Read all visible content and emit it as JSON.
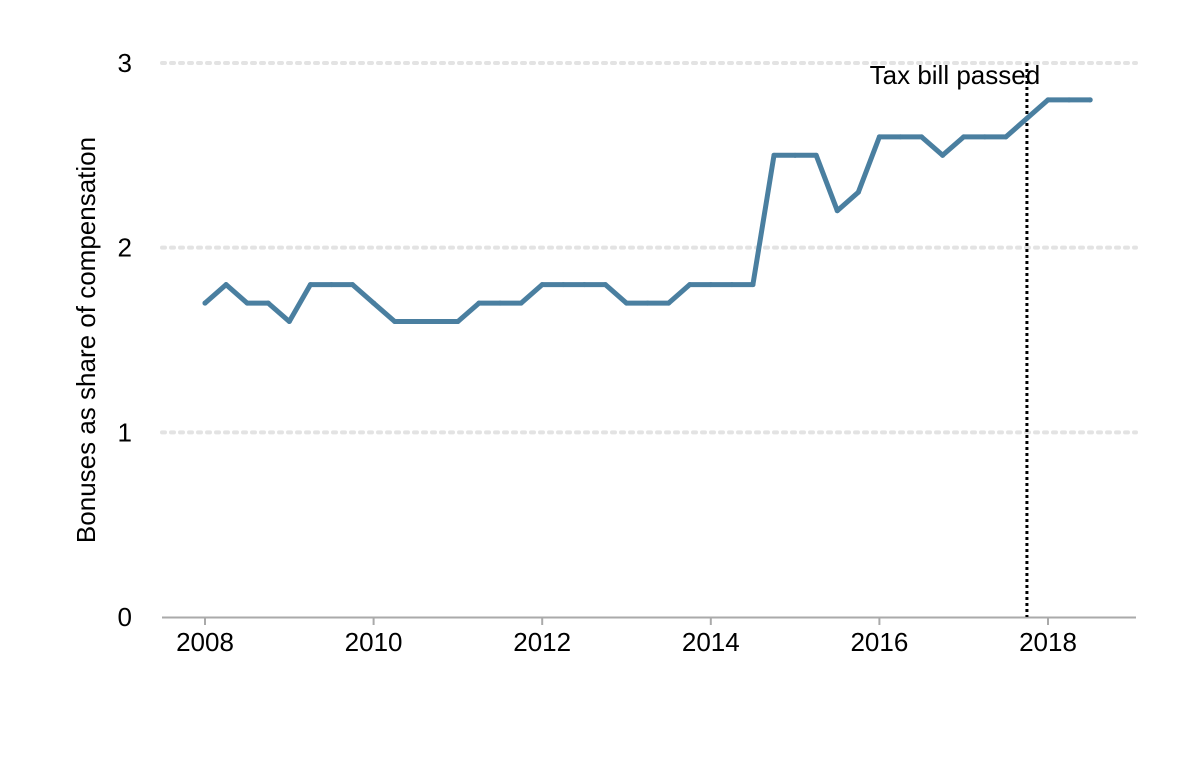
{
  "chart_data": {
    "type": "line",
    "title": "",
    "xlabel": "",
    "ylabel": "Bonuses as share of compensation",
    "xlim": [
      2007.5,
      2019.05
    ],
    "ylim": [
      0,
      3
    ],
    "x_ticks": [
      2008,
      2010,
      2012,
      2014,
      2016,
      2018
    ],
    "x_tick_labels": [
      "2008",
      "2010",
      "2012",
      "2014",
      "2016",
      "2018"
    ],
    "y_ticks": [
      0,
      1,
      2,
      3
    ],
    "y_tick_labels": [
      "0",
      "1",
      "2",
      "3"
    ],
    "grid": "horizontal dotted",
    "legend": "none",
    "series": [
      {
        "color": "#4a7fa0",
        "x": [
          2008.0,
          2008.25,
          2008.5,
          2008.75,
          2009.0,
          2009.25,
          2009.5,
          2009.75,
          2010.0,
          2010.25,
          2010.5,
          2010.75,
          2011.0,
          2011.25,
          2011.5,
          2011.75,
          2012.0,
          2012.25,
          2012.5,
          2012.75,
          2013.0,
          2013.25,
          2013.5,
          2013.75,
          2014.0,
          2014.25,
          2014.5,
          2014.75,
          2015.0,
          2015.25,
          2015.5,
          2015.75,
          2016.0,
          2016.25,
          2016.5,
          2016.75,
          2017.0,
          2017.25,
          2017.5,
          2017.75,
          2018.0,
          2018.25,
          2018.5
        ],
        "y": [
          1.7,
          1.8,
          1.7,
          1.7,
          1.6,
          1.8,
          1.8,
          1.8,
          1.7,
          1.6,
          1.6,
          1.6,
          1.6,
          1.7,
          1.7,
          1.7,
          1.8,
          1.8,
          1.8,
          1.8,
          1.7,
          1.7,
          1.7,
          1.8,
          1.8,
          1.8,
          1.8,
          2.5,
          2.5,
          2.5,
          2.2,
          2.3,
          2.6,
          2.6,
          2.6,
          2.5,
          2.6,
          2.6,
          2.6,
          2.7,
          2.8,
          2.8,
          2.8
        ]
      }
    ],
    "annotations": [
      {
        "text": "Tax bill passed",
        "x": 2017.75,
        "line_style": "dotted",
        "line_color": "#000000"
      }
    ],
    "grid_color": "#e3e3e3",
    "axis_color": "#aaaaaa"
  }
}
